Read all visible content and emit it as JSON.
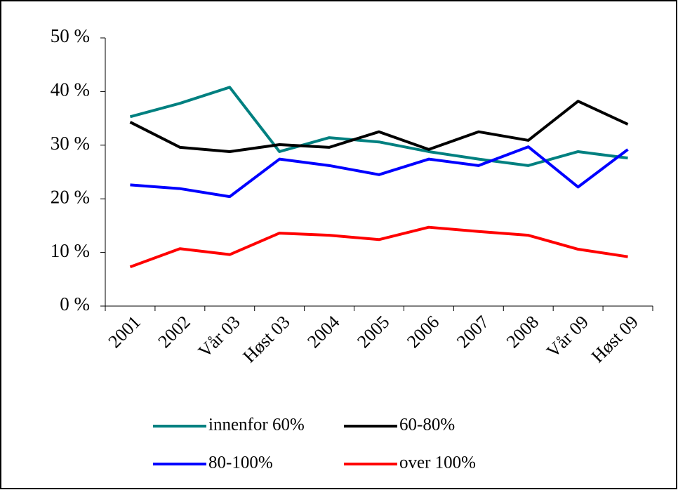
{
  "chart_data": {
    "type": "line",
    "categories": [
      "2001",
      "2002",
      "Vår 03",
      "Høst 03",
      "2004",
      "2005",
      "2006",
      "2007",
      "2008",
      "Vår 09",
      "Høst 09"
    ],
    "series": [
      {
        "name": "innenfor 60%",
        "color": "#008080",
        "values": [
          35.3,
          37.8,
          40.8,
          28.8,
          31.4,
          30.6,
          28.8,
          27.4,
          26.2,
          28.8,
          27.6
        ]
      },
      {
        "name": "60-80%",
        "color": "#000000",
        "values": [
          34.3,
          29.6,
          28.8,
          30.1,
          29.6,
          32.5,
          29.2,
          32.5,
          30.9,
          38.2,
          33.9
        ]
      },
      {
        "name": "80-100%",
        "color": "#0000ff",
        "values": [
          22.6,
          21.9,
          20.4,
          27.4,
          26.2,
          24.5,
          27.4,
          26.2,
          29.7,
          22.2,
          29.2
        ]
      },
      {
        "name": "over 100%",
        "color": "#ff0000",
        "values": [
          7.3,
          10.7,
          9.6,
          13.6,
          13.2,
          12.4,
          14.7,
          13.9,
          13.2,
          10.6,
          9.2
        ]
      }
    ],
    "ylim": [
      0,
      50
    ],
    "yticks": [
      {
        "value": 0,
        "label": "0 %"
      },
      {
        "value": 10,
        "label": "10 %"
      },
      {
        "value": 20,
        "label": "20 %"
      },
      {
        "value": 30,
        "label": "30 %"
      },
      {
        "value": 40,
        "label": "40 %"
      },
      {
        "value": 50,
        "label": "50 %"
      }
    ],
    "grid": false,
    "legend": "bottom"
  }
}
